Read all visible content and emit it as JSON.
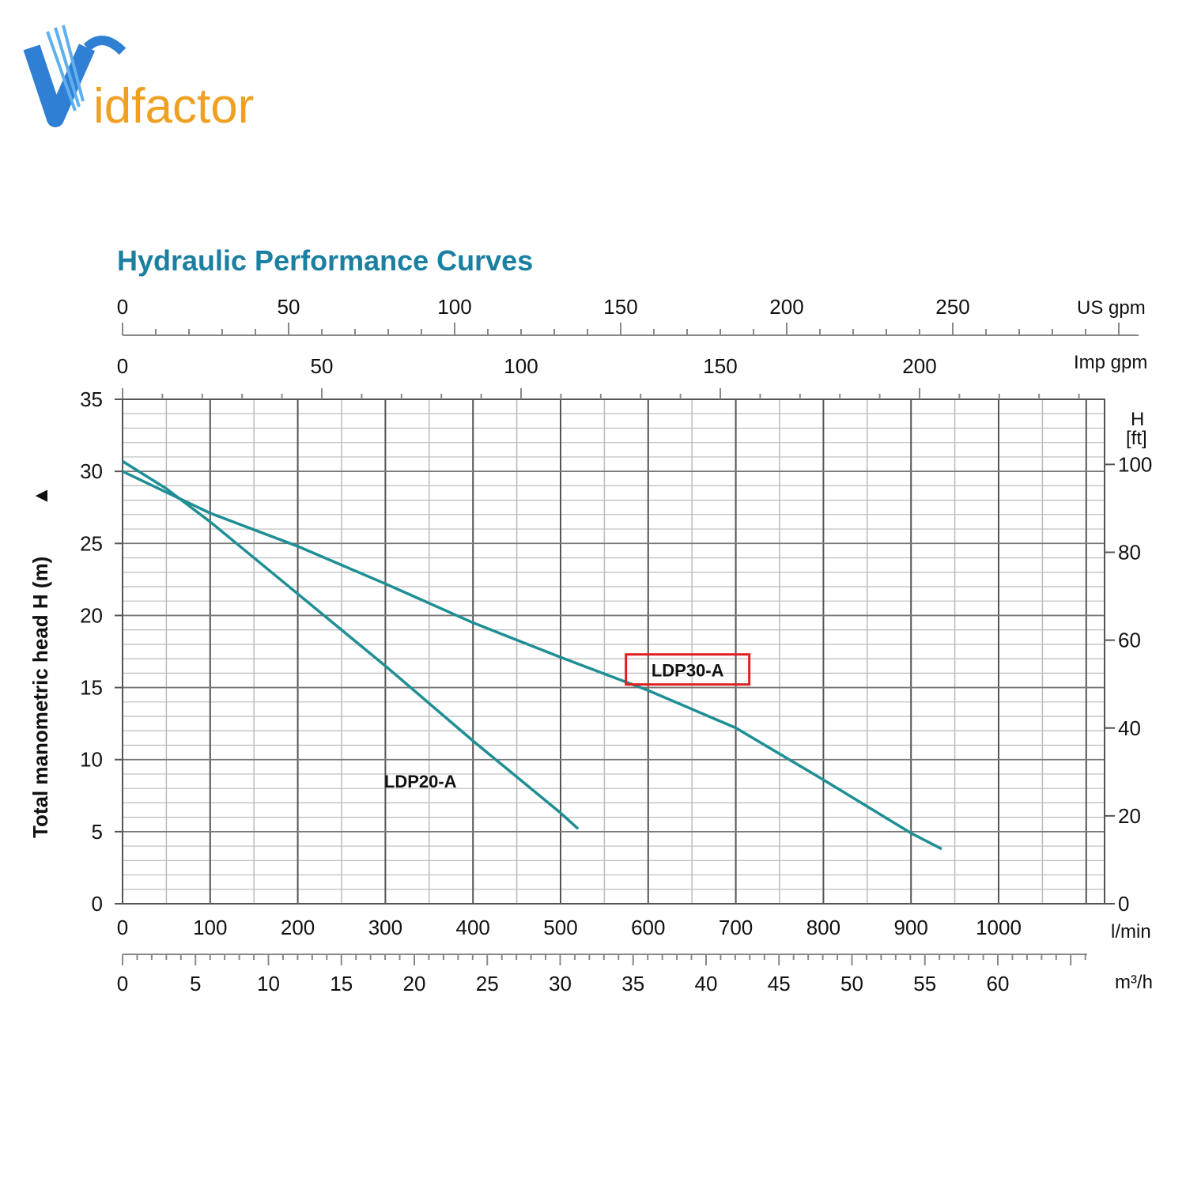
{
  "logo": {
    "text": "Vidfactor",
    "letter_v": "V",
    "rest": "idfactor",
    "colors": {
      "v": "#2f7fd4",
      "rest": "#f0a020"
    }
  },
  "colors": {
    "title": "#1a7fa0",
    "curve": "#1f8f94",
    "highlight": "#e02020",
    "grid": "#777777",
    "minor_grid": "#bbbbbb"
  },
  "chart_data": {
    "type": "line",
    "title": "Hydraulic Performance Curves",
    "ylabel": "Total manometric head H (m)",
    "ylabel_arrow": "▲",
    "right_unit_top": "H",
    "right_unit_bottom": "[ft]",
    "xlim": [
      0,
      1120
    ],
    "ylim": [
      0,
      35
    ],
    "grid": true,
    "x_lmin": {
      "unit": "l/min",
      "ticks": [
        "0",
        "100",
        "200",
        "300",
        "400",
        "500",
        "600",
        "700",
        "800",
        "900",
        "1000"
      ]
    },
    "x_m3h": {
      "unit": "m³/h",
      "ticks": [
        "0",
        "5",
        "10",
        "15",
        "20",
        "25",
        "30",
        "35",
        "40",
        "45",
        "50",
        "55",
        "60"
      ]
    },
    "x_usgpm": {
      "unit": "US gpm",
      "ticks": [
        "0",
        "50",
        "100",
        "150",
        "200",
        "250"
      ]
    },
    "x_impgpm": {
      "unit": "Imp gpm",
      "ticks": [
        "0",
        "50",
        "100",
        "150",
        "200"
      ]
    },
    "y_m": {
      "ticks": [
        "0",
        "5",
        "10",
        "15",
        "20",
        "25",
        "30",
        "35"
      ]
    },
    "y_ft": {
      "ticks": [
        "0",
        "20",
        "40",
        "60",
        "80",
        "100"
      ]
    },
    "series": [
      {
        "name": "LDP20-A",
        "x": [
          0,
          50,
          100,
          200,
          300,
          400,
          500,
          520
        ],
        "y": [
          30.7,
          28.8,
          26.5,
          21.5,
          16.5,
          11.3,
          6.3,
          5.2
        ],
        "label_pos": [
          340,
          8.5
        ]
      },
      {
        "name": "LDP30-A",
        "x": [
          0,
          100,
          200,
          300,
          400,
          500,
          600,
          700,
          800,
          900,
          935
        ],
        "y": [
          30.0,
          27.1,
          24.8,
          22.2,
          19.5,
          17.1,
          14.8,
          12.2,
          8.6,
          4.9,
          3.8
        ],
        "label_pos": [
          645,
          16.2
        ],
        "highlighted": true
      }
    ]
  }
}
